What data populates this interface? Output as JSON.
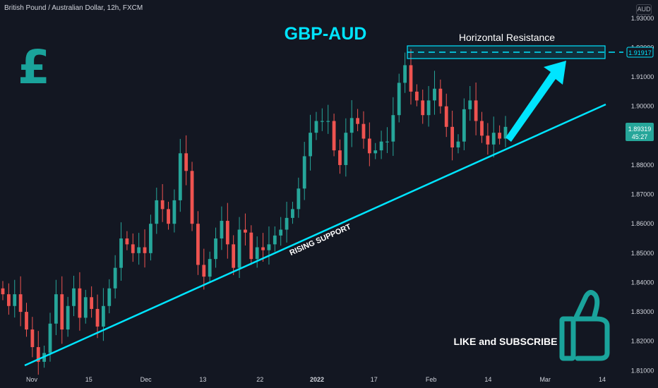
{
  "header": {
    "symbol_info": "British Pound / Australian Dollar, 12h, FXCM",
    "currency": "AUD"
  },
  "chart_data": {
    "type": "candlestick",
    "title": "GBP-AUD",
    "y_axis": {
      "range": [
        1.806,
        1.935
      ],
      "ticks": [
        "1.93000",
        "1.92000",
        "1.91000",
        "1.90000",
        "1.89000",
        "1.88000",
        "1.87000",
        "1.86000",
        "1.85000",
        "1.84000",
        "1.83000",
        "1.82000",
        "1.81000"
      ]
    },
    "x_axis": {
      "ticks": [
        "Nov",
        "15",
        "Dec",
        "13",
        "22",
        "2022",
        "17",
        "Feb",
        "14",
        "Mar",
        "14"
      ]
    },
    "grid": false,
    "price_labels": {
      "resistance_level": "1.91917",
      "current_price": "1.89319",
      "countdown": "45:27"
    },
    "annotations": {
      "resistance_label": "Horizontal Resistance",
      "support_label": "RISING SUPPORT",
      "cta": "LIKE and SUBSCRIBE"
    },
    "approximate_closes": [
      1.836,
      1.832,
      1.836,
      1.83,
      1.824,
      1.818,
      1.813,
      1.816,
      1.826,
      1.836,
      1.824,
      1.832,
      1.838,
      1.828,
      1.835,
      1.831,
      1.825,
      1.832,
      1.838,
      1.845,
      1.855,
      1.853,
      1.85,
      1.852,
      1.85,
      1.86,
      1.868,
      1.865,
      1.86,
      1.868,
      1.884,
      1.878,
      1.86,
      1.846,
      1.842,
      1.848,
      1.855,
      1.861,
      1.853,
      1.845,
      1.858,
      1.857,
      1.848,
      1.852,
      1.851,
      1.853,
      1.856,
      1.858,
      1.862,
      1.865,
      1.872,
      1.883,
      1.891,
      1.895,
      1.895,
      1.895,
      1.885,
      1.88,
      1.891,
      1.896,
      1.894,
      1.889,
      1.884,
      1.885,
      1.888,
      1.888,
      1.897,
      1.908,
      1.914,
      1.905,
      1.902,
      1.897,
      1.902,
      1.906,
      1.9,
      1.893,
      1.886,
      1.888,
      1.899,
      1.902,
      1.895,
      1.89,
      1.887,
      1.891,
      1.889,
      1.893
    ],
    "colors": {
      "background": "#131722",
      "up": "#26a69a",
      "down": "#ef5350",
      "text": "#d1d4dc",
      "accent": "#00e5ff",
      "title": "#00e5ff",
      "emblem": "#1aa39b"
    },
    "icons": [
      "pound-sign-icon",
      "thumbs-up-icon"
    ]
  }
}
